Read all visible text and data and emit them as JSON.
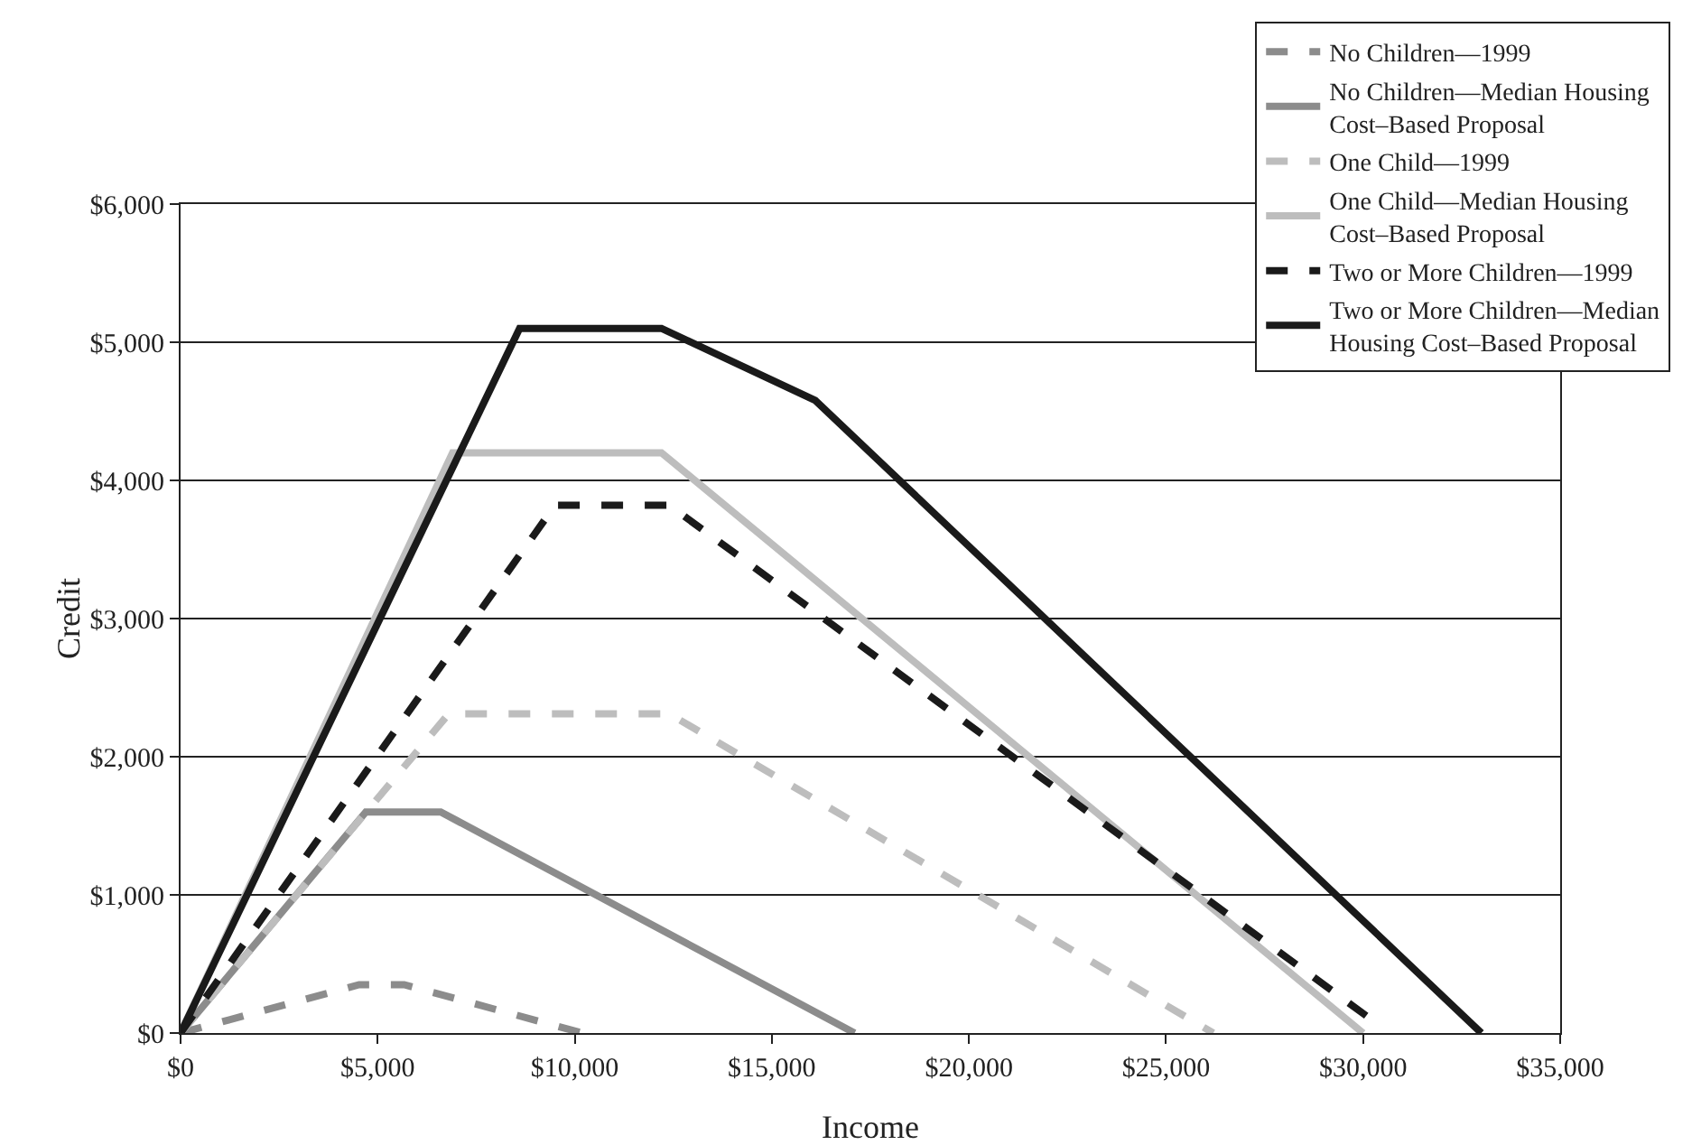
{
  "chart_data": {
    "type": "line",
    "xlabel": "Income",
    "ylabel": "Credit",
    "xlim": [
      0,
      35000
    ],
    "xticks": [
      {
        "value": 0,
        "label": "$0"
      },
      {
        "value": 5000,
        "label": "$5,000"
      },
      {
        "value": 10000,
        "label": "$10,000"
      },
      {
        "value": 15000,
        "label": "$15,000"
      },
      {
        "value": 20000,
        "label": "$20,000"
      },
      {
        "value": 25000,
        "label": "$25,000"
      },
      {
        "value": 30000,
        "label": "$30,000"
      },
      {
        "value": 35000,
        "label": "$35,000"
      }
    ],
    "ylim": [
      0,
      6000
    ],
    "yticks": [
      {
        "value": 0,
        "label": "$0"
      },
      {
        "value": 1000,
        "label": "$1,000"
      },
      {
        "value": 2000,
        "label": "$2,000"
      },
      {
        "value": 3000,
        "label": "$3,000"
      },
      {
        "value": 4000,
        "label": "$4,000"
      },
      {
        "value": 5000,
        "label": "$5,000"
      },
      {
        "value": 6000,
        "label": "$6,000"
      }
    ],
    "grid": "y",
    "legend": "top right",
    "marker": "none",
    "series": [
      {
        "name": "No Children—1999",
        "color": "#8c8c8c",
        "line_style": "dashed",
        "x": [
          0,
          4530,
          5670,
          10200
        ],
        "values": [
          0,
          350,
          350,
          0
        ]
      },
      {
        "name": "No Children—Median Housing Cost–Based Proposal",
        "color": "#8c8c8c",
        "line_style": "solid",
        "x": [
          0,
          4700,
          6600,
          17100
        ],
        "values": [
          0,
          1600,
          1600,
          0
        ]
      },
      {
        "name": "One Child—1999",
        "color": "#bdbdbd",
        "line_style": "dashed",
        "x": [
          0,
          6800,
          12400,
          26200
        ],
        "values": [
          0,
          2310,
          2310,
          0
        ]
      },
      {
        "name": "One Child—Median Housing Cost–Based Proposal",
        "color": "#bdbdbd",
        "line_style": "solid",
        "x": [
          0,
          6900,
          12200,
          30000
        ],
        "values": [
          0,
          4200,
          4200,
          0
        ]
      },
      {
        "name": "Two or More Children—1999",
        "color": "#1a1a1a",
        "line_style": "dashed",
        "x": [
          0,
          9500,
          12400,
          30200
        ],
        "values": [
          0,
          3820,
          3820,
          100
        ]
      },
      {
        "name": "Two or More Children—Median Housing Cost–Based Proposal",
        "color": "#1a1a1a",
        "line_style": "solid",
        "x": [
          0,
          8600,
          12200,
          16100,
          33000
        ],
        "values": [
          0,
          5100,
          5100,
          4580,
          0
        ]
      }
    ]
  }
}
